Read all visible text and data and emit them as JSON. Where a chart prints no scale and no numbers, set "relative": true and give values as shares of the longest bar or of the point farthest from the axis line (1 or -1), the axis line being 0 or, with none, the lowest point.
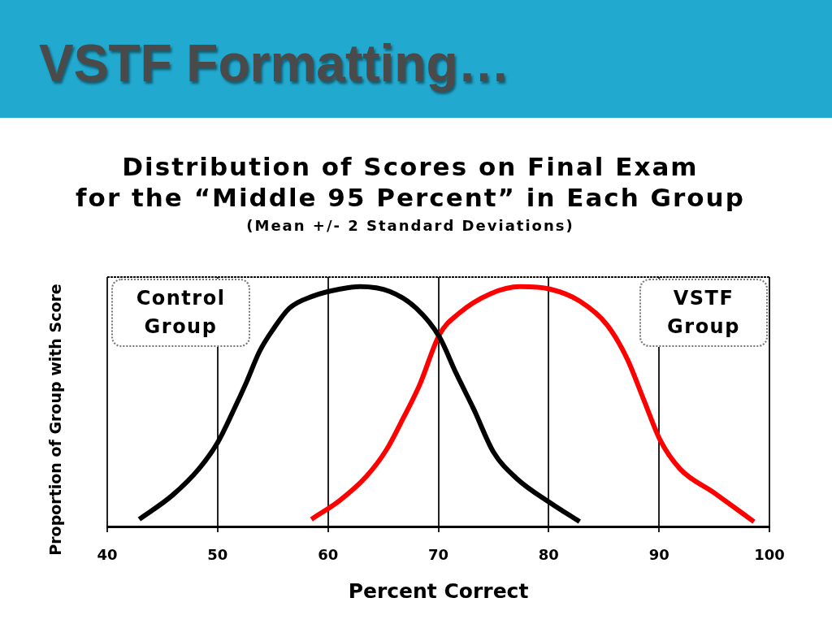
{
  "chart_data": {
    "type": "line",
    "title": "Distribution of Scores on Final Exam\nfor the “Middle 95 Percent” in Each Group",
    "subtitle": "(Mean +/- 2 Standard Deviations)",
    "xlabel": "Percent Correct",
    "ylabel": "Proportion of Group with Score",
    "annotations": [
      "VSTF Formatting…"
    ],
    "relative": true,
    "xlim": [
      40,
      100
    ],
    "xticks": [
      40,
      50,
      60,
      70,
      80,
      90,
      100
    ],
    "grid": "x",
    "marker": "none",
    "line_style": "solid",
    "series": [
      {
        "name": "Control Group",
        "color": "#000000",
        "x": [
          42.9,
          45.9,
          48.3,
          50.0,
          51.4,
          52.6,
          53.8,
          55.0,
          56.5,
          58.6,
          61.1,
          62.9,
          65.6,
          68.0,
          70.1,
          71.6,
          73.2,
          75.0,
          77.1,
          80.1,
          82.8
        ],
        "values": [
          0.03,
          0.13,
          0.24,
          0.35,
          0.48,
          0.6,
          0.73,
          0.82,
          0.91,
          0.96,
          0.99,
          1,
          0.98,
          0.91,
          0.79,
          0.64,
          0.49,
          0.31,
          0.2,
          0.1,
          0.02
        ]
      },
      {
        "name": "VSTF Group",
        "color": "#ff0000",
        "x": [
          58.5,
          61.1,
          63.5,
          65.3,
          66.8,
          68.3,
          70.1,
          71.9,
          74.7,
          77.4,
          80.1,
          82.8,
          85.3,
          87.1,
          88.6,
          90.1,
          91.9,
          95.0,
          98.6
        ],
        "values": [
          0.03,
          0.11,
          0.21,
          0.32,
          0.45,
          0.59,
          0.8,
          0.89,
          0.97,
          1,
          0.99,
          0.94,
          0.84,
          0.7,
          0.53,
          0.36,
          0.24,
          0.14,
          0.02
        ]
      }
    ]
  }
}
